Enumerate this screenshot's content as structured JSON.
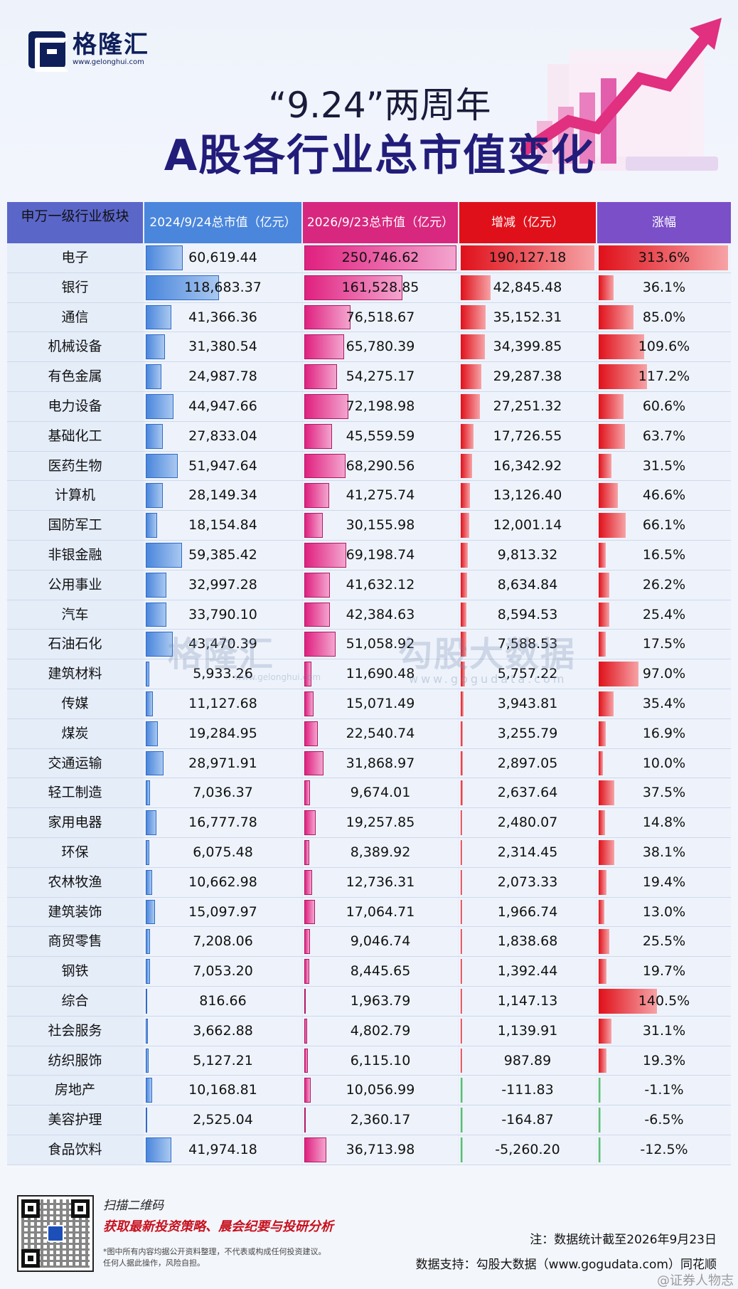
{
  "logo": {
    "name": "格隆汇",
    "url": "www.gelonghui.com"
  },
  "title_line1": "“9.24”两周年",
  "title_line2": "A股各行业总市值变化",
  "chart_data": {
    "type": "table",
    "columns": [
      "申万一级行业板块",
      "2024/9/24总市值（亿元）",
      "2026/9/23总市值（亿元）",
      "增减（亿元）",
      "涨幅"
    ],
    "rows": [
      {
        "industry": "电子",
        "v2024": 60619.44,
        "v2026": 250746.62,
        "change": 190127.18,
        "pct": 313.6
      },
      {
        "industry": "银行",
        "v2024": 118683.37,
        "v2026": 161528.85,
        "change": 42845.48,
        "pct": 36.1
      },
      {
        "industry": "通信",
        "v2024": 41366.36,
        "v2026": 76518.67,
        "change": 35152.31,
        "pct": 85.0
      },
      {
        "industry": "机械设备",
        "v2024": 31380.54,
        "v2026": 65780.39,
        "change": 34399.85,
        "pct": 109.6
      },
      {
        "industry": "有色金属",
        "v2024": 24987.78,
        "v2026": 54275.17,
        "change": 29287.38,
        "pct": 117.2
      },
      {
        "industry": "电力设备",
        "v2024": 44947.66,
        "v2026": 72198.98,
        "change": 27251.32,
        "pct": 60.6
      },
      {
        "industry": "基础化工",
        "v2024": 27833.04,
        "v2026": 45559.59,
        "change": 17726.55,
        "pct": 63.7
      },
      {
        "industry": "医药生物",
        "v2024": 51947.64,
        "v2026": 68290.56,
        "change": 16342.92,
        "pct": 31.5
      },
      {
        "industry": "计算机",
        "v2024": 28149.34,
        "v2026": 41275.74,
        "change": 13126.4,
        "pct": 46.6
      },
      {
        "industry": "国防军工",
        "v2024": 18154.84,
        "v2026": 30155.98,
        "change": 12001.14,
        "pct": 66.1
      },
      {
        "industry": "非银金融",
        "v2024": 59385.42,
        "v2026": 69198.74,
        "change": 9813.32,
        "pct": 16.5
      },
      {
        "industry": "公用事业",
        "v2024": 32997.28,
        "v2026": 41632.12,
        "change": 8634.84,
        "pct": 26.2
      },
      {
        "industry": "汽车",
        "v2024": 33790.1,
        "v2026": 42384.63,
        "change": 8594.53,
        "pct": 25.4
      },
      {
        "industry": "石油石化",
        "v2024": 43470.39,
        "v2026": 51058.92,
        "change": 7588.53,
        "pct": 17.5
      },
      {
        "industry": "建筑材料",
        "v2024": 5933.26,
        "v2026": 11690.48,
        "change": 5757.22,
        "pct": 97.0
      },
      {
        "industry": "传媒",
        "v2024": 11127.68,
        "v2026": 15071.49,
        "change": 3943.81,
        "pct": 35.4
      },
      {
        "industry": "煤炭",
        "v2024": 19284.95,
        "v2026": 22540.74,
        "change": 3255.79,
        "pct": 16.9
      },
      {
        "industry": "交通运输",
        "v2024": 28971.91,
        "v2026": 31868.97,
        "change": 2897.05,
        "pct": 10.0
      },
      {
        "industry": "轻工制造",
        "v2024": 7036.37,
        "v2026": 9674.01,
        "change": 2637.64,
        "pct": 37.5
      },
      {
        "industry": "家用电器",
        "v2024": 16777.78,
        "v2026": 19257.85,
        "change": 2480.07,
        "pct": 14.8
      },
      {
        "industry": "环保",
        "v2024": 6075.48,
        "v2026": 8389.92,
        "change": 2314.45,
        "pct": 38.1
      },
      {
        "industry": "农林牧渔",
        "v2024": 10662.98,
        "v2026": 12736.31,
        "change": 2073.33,
        "pct": 19.4
      },
      {
        "industry": "建筑装饰",
        "v2024": 15097.97,
        "v2026": 17064.71,
        "change": 1966.74,
        "pct": 13.0
      },
      {
        "industry": "商贸零售",
        "v2024": 7208.06,
        "v2026": 9046.74,
        "change": 1838.68,
        "pct": 25.5
      },
      {
        "industry": "钢铁",
        "v2024": 7053.2,
        "v2026": 8445.65,
        "change": 1392.44,
        "pct": 19.7
      },
      {
        "industry": "综合",
        "v2024": 816.66,
        "v2026": 1963.79,
        "change": 1147.13,
        "pct": 140.5
      },
      {
        "industry": "社会服务",
        "v2024": 3662.88,
        "v2026": 4802.79,
        "change": 1139.91,
        "pct": 31.1
      },
      {
        "industry": "纺织服饰",
        "v2024": 5127.21,
        "v2026": 6115.1,
        "change": 987.89,
        "pct": 19.3
      },
      {
        "industry": "房地产",
        "v2024": 10168.81,
        "v2026": 10056.99,
        "change": -111.83,
        "pct": -1.1
      },
      {
        "industry": "美容护理",
        "v2024": 2525.04,
        "v2026": 2360.17,
        "change": -164.87,
        "pct": -6.5
      },
      {
        "industry": "食品饮料",
        "v2024": 41974.18,
        "v2026": 36713.98,
        "change": -5260.2,
        "pct": -12.5
      }
    ],
    "header_colors": [
      "#5b66c9",
      "#4a86dc",
      "#d8277f",
      "#e0101a",
      "#7a4fc8"
    ]
  },
  "watermark": {
    "brand1": "格隆汇",
    "url1": "www.gelonghui.com",
    "brand2": "勾股大数据",
    "url2": "www.gogudata.com"
  },
  "footer": {
    "scan": "扫描二维码",
    "promo": "获取最新投资策略、晨会纪要与投研分析",
    "disclaimer_1": "*图中所有内容均据公开资料整理，不代表或构成任何投资建议。",
    "disclaimer_2": "任何人据此操作，风险自担。",
    "note": "注：数据统计截至2026年9月23日",
    "source": "数据支持：勾股大数据（www.gogudata.com）同花顺",
    "weibo": "@证券人物志"
  }
}
